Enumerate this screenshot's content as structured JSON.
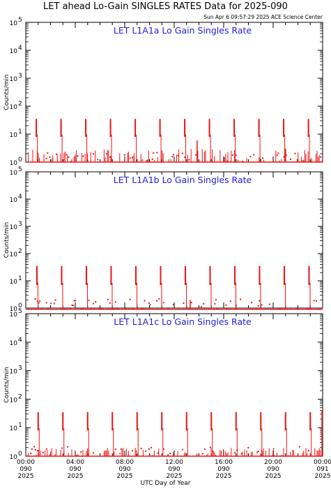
{
  "title": "LET ahead Lo-Gain SINGLES RATES Data for 2025-090",
  "timestamp": "Sun Apr  6 09:57:29 2025 ACE Science Center",
  "xlabel": "UTC Day of Year",
  "colors": {
    "series": "#ee1111",
    "panel_title": "#1f1fd8",
    "axes": "#000000"
  },
  "chart_data": [
    {
      "type": "line",
      "title": "LET L1A1a Lo Gain Singles Rate",
      "ylabel": "Counts/min",
      "yscale": "log",
      "ylim": [
        1,
        100000
      ],
      "xlim": [
        0,
        24
      ],
      "spike_peaks": [
        0.85,
        2.85,
        4.85,
        6.85,
        8.85,
        10.85,
        12.85,
        14.85,
        16.85,
        18.85,
        20.85,
        22.85
      ],
      "spike_max": 35,
      "spike_min": 8,
      "baseline": 1,
      "extra_spikes": [
        [
          13.85,
          6
        ],
        [
          21.0,
          3
        ]
      ],
      "noise_max": 3
    },
    {
      "type": "line",
      "title": "LET L1A1b Lo Gain Singles Rate",
      "ylabel": "Counts/min",
      "yscale": "log",
      "ylim": [
        1,
        100000
      ],
      "xlim": [
        0,
        24
      ],
      "spike_peaks": [
        0.9,
        2.9,
        4.9,
        6.9,
        8.9,
        10.9,
        12.9,
        14.9,
        16.9,
        18.9,
        20.9,
        22.9
      ],
      "spike_max": 35,
      "spike_min": 7,
      "baseline": 0.9,
      "extra_spikes": [
        [
          13.3,
          2
        ]
      ],
      "noise_max": 1
    },
    {
      "type": "line",
      "title": "LET L1A1c Lo Gain Singles Rate",
      "ylabel": "Counts/min",
      "yscale": "log",
      "ylim": [
        1,
        100000
      ],
      "xlim": [
        0,
        24
      ],
      "spike_peaks": [
        1.0,
        3.0,
        5.0,
        7.0,
        9.0,
        11.0,
        13.0,
        15.0,
        17.0,
        19.0,
        21.0,
        23.0
      ],
      "spike_max": 35,
      "spike_min": 8,
      "baseline": 1,
      "extra_spikes": [
        [
          23.95,
          40
        ]
      ],
      "noise_max": 2
    }
  ],
  "x_ticks": [
    {
      "time": "00:00",
      "doy": "090",
      "year": "2025"
    },
    {
      "time": "04:00",
      "doy": "090",
      "year": "2025"
    },
    {
      "time": "08:00",
      "doy": "090",
      "year": "2025"
    },
    {
      "time": "12:00",
      "doy": "090",
      "year": "2025"
    },
    {
      "time": "16:00",
      "doy": "090",
      "year": "2025"
    },
    {
      "time": "20:00",
      "doy": "090",
      "year": "2025"
    },
    {
      "time": "00:00",
      "doy": "091",
      "year": "2025"
    }
  ],
  "y_ticks": [
    "10",
    "10",
    "10",
    "10",
    "10",
    "10"
  ],
  "y_exponents": [
    "0",
    "1",
    "2",
    "3",
    "4",
    "5"
  ]
}
